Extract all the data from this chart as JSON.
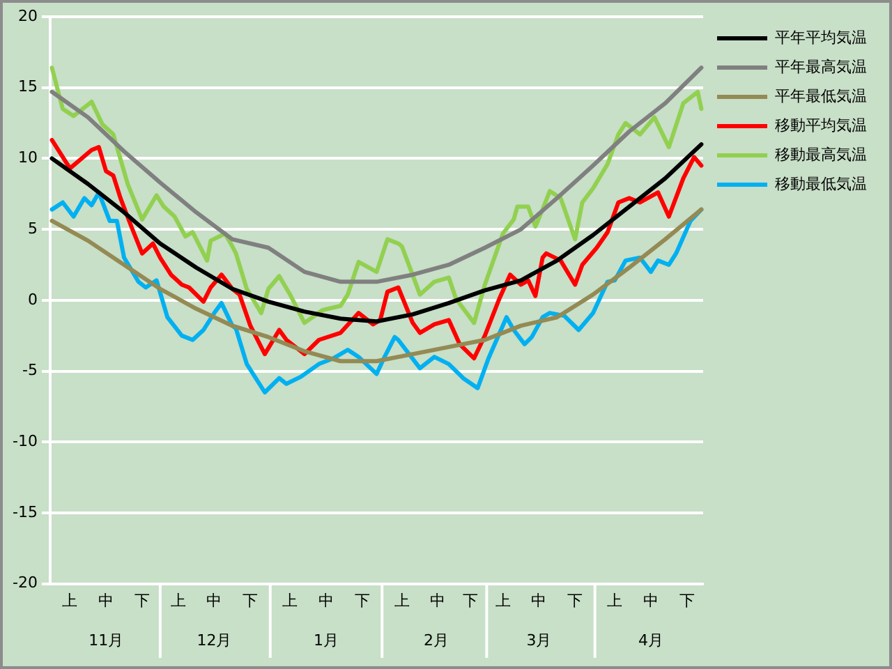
{
  "chart_data": {
    "type": "line",
    "categories": [
      null,
      null,
      null,
      null,
      null,
      "上",
      null,
      null,
      null,
      null,
      null,
      null,
      null,
      null,
      null,
      "中",
      null,
      null,
      null,
      null,
      null,
      null,
      null,
      null,
      null,
      "下",
      null,
      null,
      null,
      null,
      null,
      null,
      null,
      null,
      null,
      "上",
      null,
      null,
      null,
      null,
      null,
      null,
      null,
      null,
      null,
      "中",
      null,
      null,
      null,
      null,
      null,
      null,
      null,
      null,
      null,
      "下",
      null,
      null,
      null,
      null,
      null,
      null,
      null,
      null,
      null,
      null,
      "上",
      null,
      null,
      null,
      null,
      null,
      null,
      null,
      null,
      null,
      "中",
      null,
      null,
      null,
      null,
      null,
      null,
      null,
      null,
      null,
      "下",
      null,
      null,
      null,
      null,
      null,
      null,
      null,
      null,
      null,
      null,
      "上",
      null,
      null,
      null,
      null,
      null,
      null,
      null,
      null,
      null,
      "中",
      null,
      null,
      null,
      null,
      null,
      null,
      null,
      null,
      "下",
      null,
      null,
      null,
      null,
      null,
      null,
      null,
      null,
      "上",
      null,
      null,
      null,
      null,
      null,
      null,
      null,
      null,
      null,
      "中",
      null,
      null,
      null,
      null,
      null,
      null,
      null,
      null,
      null,
      "下",
      null,
      null,
      null,
      null,
      null,
      null,
      null,
      null,
      null,
      null,
      "上",
      null,
      null,
      null,
      null,
      null,
      null,
      null,
      null,
      null,
      "中",
      null,
      null,
      null,
      null,
      null,
      null,
      null,
      null,
      null,
      "下",
      null,
      null,
      null,
      null
    ],
    "series": [
      {
        "name": "平年平均気温",
        "color": "#000000",
        "values": [
          10.0,
          null,
          null,
          null,
          null,
          null,
          null,
          null,
          null,
          null,
          8.2,
          null,
          null,
          null,
          null,
          null,
          null,
          null,
          null,
          null,
          6.2,
          null,
          null,
          null,
          null,
          null,
          null,
          null,
          null,
          null,
          4.0,
          null,
          null,
          null,
          null,
          null,
          null,
          null,
          null,
          null,
          2.3,
          null,
          null,
          null,
          null,
          null,
          null,
          null,
          null,
          null,
          0.8,
          null,
          null,
          null,
          null,
          null,
          null,
          null,
          null,
          null,
          -0.1,
          null,
          null,
          null,
          null,
          null,
          null,
          null,
          null,
          null,
          -0.8,
          null,
          null,
          null,
          null,
          null,
          null,
          null,
          null,
          null,
          -1.3,
          null,
          null,
          null,
          null,
          null,
          null,
          null,
          null,
          null,
          -1.5,
          null,
          null,
          null,
          null,
          null,
          null,
          null,
          null,
          null,
          -1.0,
          null,
          null,
          null,
          null,
          null,
          null,
          null,
          null,
          null,
          -0.2,
          null,
          null,
          null,
          null,
          null,
          null,
          null,
          null,
          null,
          0.7,
          null,
          null,
          null,
          null,
          null,
          null,
          null,
          null,
          null,
          1.4,
          null,
          null,
          null,
          null,
          null,
          null,
          null,
          null,
          null,
          2.8,
          null,
          null,
          null,
          null,
          null,
          null,
          null,
          null,
          null,
          4.6,
          null,
          null,
          null,
          null,
          null,
          null,
          null,
          null,
          null,
          6.6,
          null,
          null,
          null,
          null,
          null,
          null,
          null,
          null,
          null,
          8.6,
          null,
          null,
          null,
          null,
          null,
          null,
          null,
          null,
          null,
          11.0
        ]
      },
      {
        "name": "平年最高気温",
        "color": "#808080",
        "values": [
          14.7,
          null,
          null,
          null,
          null,
          null,
          null,
          null,
          null,
          null,
          12.9,
          null,
          null,
          null,
          null,
          null,
          null,
          null,
          null,
          null,
          10.5,
          null,
          null,
          null,
          null,
          null,
          null,
          null,
          null,
          null,
          8.3,
          null,
          null,
          null,
          null,
          null,
          null,
          null,
          null,
          null,
          6.2,
          null,
          null,
          null,
          null,
          null,
          null,
          null,
          null,
          null,
          4.3,
          null,
          null,
          null,
          null,
          null,
          null,
          null,
          null,
          null,
          3.7,
          null,
          null,
          null,
          null,
          null,
          null,
          null,
          null,
          null,
          2.0,
          null,
          null,
          null,
          null,
          null,
          null,
          null,
          null,
          null,
          1.3,
          null,
          null,
          null,
          null,
          null,
          null,
          null,
          null,
          null,
          1.3,
          null,
          null,
          null,
          null,
          null,
          null,
          null,
          null,
          null,
          1.8,
          null,
          null,
          null,
          null,
          null,
          null,
          null,
          null,
          null,
          2.5,
          null,
          null,
          null,
          null,
          null,
          null,
          null,
          null,
          null,
          3.7,
          null,
          null,
          null,
          null,
          null,
          null,
          null,
          null,
          null,
          5.0,
          null,
          null,
          null,
          null,
          null,
          null,
          null,
          null,
          null,
          7.2,
          null,
          null,
          null,
          null,
          null,
          null,
          null,
          null,
          null,
          9.5,
          null,
          null,
          null,
          null,
          null,
          null,
          null,
          null,
          null,
          11.9,
          null,
          null,
          null,
          null,
          null,
          null,
          null,
          null,
          null,
          13.9,
          null,
          null,
          null,
          null,
          null,
          null,
          null,
          null,
          null,
          16.4
        ]
      },
      {
        "name": "平年最低気温",
        "color": "#948a54",
        "values": [
          5.6,
          null,
          null,
          null,
          null,
          null,
          null,
          null,
          null,
          null,
          4.2,
          null,
          null,
          null,
          null,
          null,
          null,
          null,
          null,
          null,
          2.5,
          null,
          null,
          null,
          null,
          null,
          null,
          null,
          null,
          null,
          0.8,
          null,
          null,
          null,
          null,
          null,
          null,
          null,
          null,
          null,
          -0.6,
          null,
          null,
          null,
          null,
          null,
          null,
          null,
          null,
          null,
          -1.8,
          null,
          null,
          null,
          null,
          null,
          null,
          null,
          null,
          null,
          -2.6,
          null,
          null,
          null,
          null,
          null,
          null,
          null,
          null,
          null,
          -3.6,
          null,
          null,
          null,
          null,
          null,
          null,
          null,
          null,
          null,
          -4.3,
          null,
          null,
          null,
          null,
          null,
          null,
          null,
          null,
          null,
          -4.3,
          null,
          null,
          null,
          null,
          null,
          null,
          null,
          null,
          null,
          -3.8,
          null,
          null,
          null,
          null,
          null,
          null,
          null,
          null,
          null,
          -3.3,
          null,
          null,
          null,
          null,
          null,
          null,
          null,
          null,
          null,
          -2.8,
          null,
          null,
          null,
          null,
          null,
          null,
          null,
          null,
          null,
          -1.8,
          null,
          null,
          null,
          null,
          null,
          null,
          null,
          null,
          null,
          -1.2,
          null,
          null,
          null,
          null,
          null,
          null,
          null,
          null,
          null,
          0.4,
          null,
          null,
          null,
          null,
          null,
          null,
          null,
          null,
          null,
          2.3,
          null,
          null,
          null,
          null,
          null,
          null,
          null,
          null,
          null,
          4.3,
          null,
          null,
          null,
          null,
          null,
          null,
          null,
          null,
          null,
          6.4
        ]
      },
      {
        "name": "移動平均気温",
        "color": "#ff0000",
        "values": [
          11.3,
          null,
          null,
          null,
          null,
          9.3,
          null,
          null,
          null,
          null,
          null,
          10.6,
          null,
          10.8,
          null,
          9.1,
          null,
          8.8,
          null,
          7.2,
          null,
          null,
          5.2,
          null,
          null,
          3.3,
          null,
          null,
          4.0,
          null,
          3.0,
          null,
          null,
          1.8,
          null,
          null,
          1.1,
          null,
          0.9,
          null,
          null,
          null,
          -0.1,
          null,
          0.9,
          null,
          null,
          1.8,
          null,
          null,
          0.8,
          null,
          0.4,
          null,
          null,
          -1.8,
          null,
          null,
          null,
          -3.8,
          null,
          null,
          null,
          -2.1,
          null,
          -2.8,
          null,
          null,
          null,
          null,
          -3.8,
          null,
          null,
          null,
          -2.8,
          null,
          null,
          null,
          null,
          null,
          -2.3,
          null,
          null,
          null,
          null,
          -0.9,
          null,
          null,
          null,
          -1.7,
          null,
          -1.4,
          null,
          0.6,
          null,
          null,
          0.9,
          null,
          null,
          null,
          -1.6,
          null,
          -2.3,
          null,
          null,
          null,
          -1.7,
          null,
          null,
          null,
          -1.4,
          null,
          null,
          -3.1,
          null,
          null,
          null,
          -4.1,
          null,
          null,
          -2.5,
          null,
          null,
          null,
          0.1,
          null,
          null,
          1.8,
          null,
          null,
          1.1,
          null,
          1.4,
          null,
          0.3,
          null,
          3.0,
          3.3,
          null,
          null,
          null,
          2.8,
          null,
          null,
          null,
          1.1,
          null,
          2.5,
          null,
          null,
          null,
          3.7,
          null,
          null,
          4.8,
          null,
          null,
          6.9,
          null,
          null,
          7.2,
          null,
          null,
          6.9,
          null,
          null,
          null,
          null,
          7.6,
          null,
          null,
          5.9,
          null,
          null,
          null,
          8.6,
          null,
          null,
          10.1,
          null,
          9.5
        ]
      },
      {
        "name": "移動最高気温",
        "color": "#92d050",
        "values": [
          16.4,
          null,
          null,
          13.5,
          null,
          null,
          13.0,
          null,
          null,
          null,
          null,
          14.0,
          null,
          null,
          12.4,
          null,
          null,
          11.7,
          null,
          null,
          null,
          8.2,
          null,
          null,
          null,
          5.7,
          null,
          null,
          null,
          7.4,
          null,
          6.6,
          null,
          null,
          5.9,
          null,
          null,
          4.5,
          null,
          4.8,
          null,
          null,
          null,
          2.8,
          4.2,
          null,
          null,
          null,
          4.7,
          null,
          3.8,
          3.3,
          null,
          null,
          0.8,
          null,
          null,
          null,
          -0.9,
          null,
          0.8,
          null,
          null,
          1.7,
          null,
          null,
          0.4,
          null,
          null,
          null,
          -1.6,
          null,
          null,
          null,
          null,
          -0.7,
          null,
          null,
          null,
          null,
          -0.4,
          null,
          0.4,
          null,
          null,
          2.7,
          null,
          null,
          null,
          null,
          2.0,
          null,
          null,
          4.3,
          null,
          null,
          4.0,
          3.8,
          null,
          null,
          null,
          null,
          0.4,
          null,
          null,
          null,
          1.3,
          null,
          null,
          null,
          1.6,
          null,
          0.1,
          null,
          null,
          null,
          null,
          -1.6,
          null,
          null,
          1.1,
          null,
          null,
          null,
          null,
          4.7,
          null,
          null,
          5.7,
          6.6,
          null,
          null,
          6.6,
          null,
          5.2,
          null,
          6.4,
          null,
          7.7,
          null,
          null,
          7.2,
          null,
          null,
          null,
          4.3,
          null,
          6.9,
          null,
          null,
          7.9,
          null,
          null,
          null,
          9.6,
          null,
          null,
          11.7,
          null,
          12.5,
          null,
          null,
          null,
          11.7,
          null,
          null,
          null,
          12.9,
          null,
          null,
          null,
          10.8,
          null,
          null,
          null,
          13.9,
          null,
          null,
          null,
          14.7,
          13.5
        ]
      },
      {
        "name": "移動最低気温",
        "color": "#00b0f0",
        "values": [
          6.4,
          null,
          null,
          6.9,
          null,
          null,
          5.9,
          null,
          null,
          7.2,
          null,
          6.7,
          null,
          7.6,
          null,
          null,
          5.6,
          null,
          5.6,
          null,
          3.0,
          null,
          null,
          null,
          1.3,
          null,
          0.9,
          null,
          null,
          1.4,
          null,
          null,
          -1.2,
          null,
          null,
          null,
          -2.5,
          null,
          null,
          -2.8,
          null,
          null,
          -2.1,
          null,
          null,
          -0.9,
          null,
          -0.2,
          null,
          null,
          -1.8,
          -2.0,
          null,
          null,
          -4.5,
          null,
          null,
          null,
          null,
          -6.5,
          null,
          null,
          null,
          -5.5,
          null,
          -5.9,
          null,
          null,
          null,
          -5.4,
          null,
          null,
          null,
          null,
          -4.5,
          null,
          null,
          null,
          -4.1,
          null,
          null,
          null,
          -3.5,
          null,
          null,
          -4.0,
          null,
          null,
          null,
          null,
          -5.2,
          null,
          -4.1,
          null,
          null,
          -2.6,
          -2.8,
          null,
          null,
          null,
          null,
          null,
          -4.8,
          null,
          null,
          null,
          -4.0,
          null,
          null,
          null,
          -4.5,
          null,
          null,
          null,
          -5.5,
          null,
          null,
          null,
          -6.2,
          null,
          null,
          -4.1,
          null,
          null,
          null,
          null,
          -1.2,
          null,
          -2.1,
          null,
          null,
          -3.1,
          null,
          -2.6,
          null,
          null,
          -1.2,
          null,
          -0.9,
          null,
          null,
          null,
          -1.1,
          null,
          null,
          null,
          -2.1,
          null,
          null,
          null,
          -0.9,
          null,
          null,
          null,
          1.3,
          null,
          1.4,
          null,
          null,
          2.8,
          null,
          null,
          null,
          3.0,
          null,
          null,
          2.0,
          null,
          2.8,
          null,
          null,
          2.5,
          null,
          3.3,
          null,
          null,
          null,
          5.6,
          null,
          null,
          6.4
        ]
      }
    ],
    "annotations": [
      "11月",
      "12月",
      "1月",
      "2月",
      "3月",
      "4月"
    ],
    "ylim": [
      -20,
      20
    ],
    "yticks": [
      -20,
      -15,
      -10,
      -5,
      0,
      5,
      10,
      15,
      20
    ],
    "grid": "y",
    "legend": "right"
  }
}
